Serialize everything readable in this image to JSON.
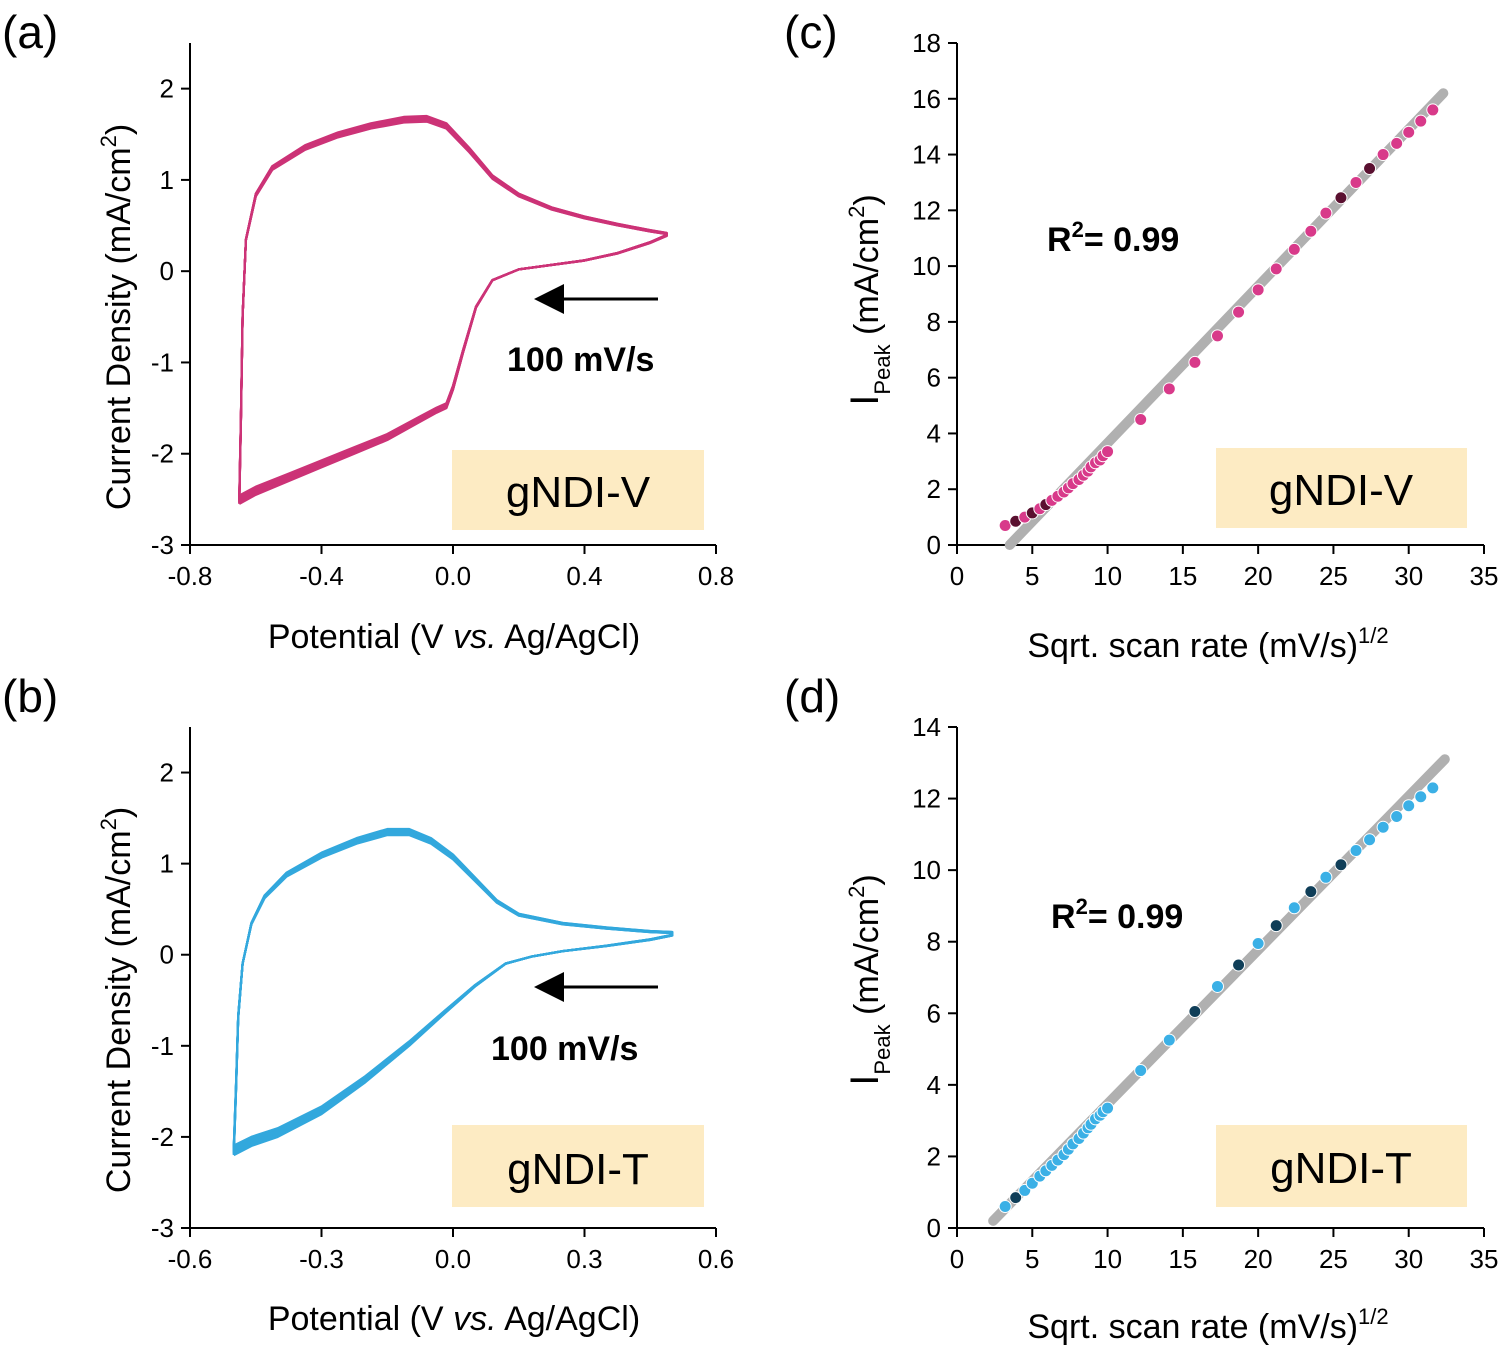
{
  "chart_data": [
    {
      "panel": "(a)",
      "type": "line",
      "xlabel": {
        "pre": "Potential (V ",
        "italic": "vs.",
        "post": " Ag/AgCl)"
      },
      "ylabel": {
        "main": "Current Density (mA/cm",
        "sup": "2",
        "end": ")"
      },
      "xlim": [
        -0.8,
        0.8
      ],
      "ylim": [
        -3,
        2.5
      ],
      "xticks": [
        "-0.8",
        "-0.4",
        "0.0",
        "0.4",
        "0.8"
      ],
      "yticks": [
        "-3",
        "-2",
        "-1",
        "0",
        "1",
        "2"
      ],
      "series_color": "#cc3377",
      "scan_label": "100 mV/s",
      "sample_label": "gNDI-V",
      "label_box_color": "#fdebc3",
      "upper_branch": [
        [
          -0.65,
          -2.55
        ],
        [
          -0.645,
          -1.6
        ],
        [
          -0.64,
          -0.5
        ],
        [
          -0.63,
          0.35
        ],
        [
          -0.6,
          0.85
        ],
        [
          -0.55,
          1.15
        ],
        [
          -0.45,
          1.38
        ],
        [
          -0.35,
          1.52
        ],
        [
          -0.25,
          1.62
        ],
        [
          -0.15,
          1.69
        ],
        [
          -0.08,
          1.7
        ],
        [
          -0.02,
          1.62
        ],
        [
          0.05,
          1.35
        ],
        [
          0.12,
          1.05
        ],
        [
          0.2,
          0.85
        ],
        [
          0.3,
          0.7
        ],
        [
          0.4,
          0.6
        ],
        [
          0.5,
          0.52
        ],
        [
          0.6,
          0.45
        ],
        [
          0.65,
          0.42
        ]
      ],
      "lower_branch": [
        [
          0.65,
          0.4
        ],
        [
          0.6,
          0.32
        ],
        [
          0.5,
          0.2
        ],
        [
          0.4,
          0.12
        ],
        [
          0.3,
          0.07
        ],
        [
          0.2,
          0.02
        ],
        [
          0.12,
          -0.1
        ],
        [
          0.07,
          -0.4
        ],
        [
          0.03,
          -0.9
        ],
        [
          0.0,
          -1.3
        ],
        [
          -0.02,
          -1.5
        ],
        [
          -0.05,
          -1.55
        ],
        [
          -0.1,
          -1.65
        ],
        [
          -0.2,
          -1.85
        ],
        [
          -0.3,
          -2.0
        ],
        [
          -0.4,
          -2.15
        ],
        [
          -0.5,
          -2.3
        ],
        [
          -0.6,
          -2.45
        ],
        [
          -0.65,
          -2.55
        ]
      ],
      "cycle_offset_max": 0.06
    },
    {
      "panel": "(b)",
      "type": "line",
      "xlabel": {
        "pre": "Potential (V ",
        "italic": "vs.",
        "post": " Ag/AgCl)"
      },
      "ylabel": {
        "main": "Current Density (mA/cm",
        "sup": "2",
        "end": ")"
      },
      "xlim": [
        -0.6,
        0.6
      ],
      "ylim": [
        -3,
        2.5
      ],
      "xticks": [
        "-0.6",
        "-0.3",
        "0.0",
        "0.3",
        "0.6"
      ],
      "yticks": [
        "-3",
        "-2",
        "-1",
        "0",
        "1",
        "2"
      ],
      "series_color": "#33a8dd",
      "scan_label": "100 mV/s",
      "sample_label": "gNDI-T",
      "label_box_color": "#fdebc3",
      "upper_branch": [
        [
          -0.5,
          -2.2
        ],
        [
          -0.495,
          -1.5
        ],
        [
          -0.49,
          -0.7
        ],
        [
          -0.48,
          -0.1
        ],
        [
          -0.46,
          0.35
        ],
        [
          -0.43,
          0.65
        ],
        [
          -0.38,
          0.9
        ],
        [
          -0.3,
          1.12
        ],
        [
          -0.22,
          1.28
        ],
        [
          -0.15,
          1.38
        ],
        [
          -0.1,
          1.38
        ],
        [
          -0.05,
          1.28
        ],
        [
          0.0,
          1.1
        ],
        [
          0.05,
          0.85
        ],
        [
          0.1,
          0.6
        ],
        [
          0.15,
          0.45
        ],
        [
          0.25,
          0.35
        ],
        [
          0.35,
          0.3
        ],
        [
          0.45,
          0.26
        ],
        [
          0.5,
          0.25
        ]
      ],
      "lower_branch": [
        [
          0.5,
          0.22
        ],
        [
          0.45,
          0.17
        ],
        [
          0.35,
          0.1
        ],
        [
          0.25,
          0.04
        ],
        [
          0.18,
          -0.02
        ],
        [
          0.12,
          -0.1
        ],
        [
          0.05,
          -0.35
        ],
        [
          -0.02,
          -0.65
        ],
        [
          -0.1,
          -1.0
        ],
        [
          -0.2,
          -1.4
        ],
        [
          -0.3,
          -1.75
        ],
        [
          -0.4,
          -2.0
        ],
        [
          -0.46,
          -2.1
        ],
        [
          -0.5,
          -2.2
        ]
      ],
      "cycle_offset_max": 0.08
    },
    {
      "panel": "(c)",
      "type": "scatter",
      "xlabel": {
        "main": "Sqrt. scan rate (mV/s)",
        "sup": "1/2"
      },
      "ylabel": {
        "main": "I",
        "sub": "Peak",
        "post": " (mA/cm",
        "sup": "2",
        "end": ")"
      },
      "xlim": [
        0,
        35
      ],
      "ylim": [
        0,
        18
      ],
      "xticks": [
        "0",
        "5",
        "10",
        "15",
        "20",
        "25",
        "30",
        "35"
      ],
      "yticks": [
        "0",
        "2",
        "4",
        "6",
        "8",
        "10",
        "12",
        "14",
        "16",
        "18"
      ],
      "marker_color": "#d83a8a",
      "marker_dark_color": "#5a1030",
      "fit_color": "#b0b0b0",
      "fit_line": [
        [
          3.5,
          0
        ],
        [
          32.3,
          16.2
        ]
      ],
      "annotation": {
        "prefix": "R",
        "sup": "2",
        "suffix": "= 0.99"
      },
      "sample_label": "gNDI-V",
      "label_box_color": "#fdebc3",
      "x": [
        3.2,
        3.9,
        4.5,
        5.0,
        5.5,
        5.9,
        6.3,
        6.7,
        7.1,
        7.4,
        7.7,
        8.1,
        8.4,
        8.7,
        8.9,
        9.2,
        9.5,
        9.7,
        10.0,
        12.2,
        14.1,
        15.8,
        17.3,
        18.7,
        20.0,
        21.2,
        22.4,
        23.5,
        24.5,
        25.5,
        26.5,
        27.4,
        28.3,
        29.2,
        30.0,
        30.8,
        31.6
      ],
      "y": [
        0.7,
        0.85,
        1.0,
        1.15,
        1.3,
        1.45,
        1.6,
        1.75,
        1.9,
        2.05,
        2.2,
        2.35,
        2.5,
        2.65,
        2.8,
        2.95,
        3.05,
        3.2,
        3.35,
        4.5,
        5.6,
        6.55,
        7.5,
        8.35,
        9.15,
        9.9,
        10.6,
        11.25,
        11.9,
        12.45,
        13.0,
        13.5,
        14.0,
        14.4,
        14.8,
        15.2,
        15.6
      ]
    },
    {
      "panel": "(d)",
      "type": "scatter",
      "xlabel": {
        "main": "Sqrt. scan rate (mV/s)",
        "sup": "1/2"
      },
      "ylabel": {
        "main": "I",
        "sub": "Peak",
        "post": " (mA/cm",
        "sup": "2",
        "end": ")"
      },
      "xlim": [
        0,
        35
      ],
      "ylim": [
        0,
        14
      ],
      "xticks": [
        "0",
        "5",
        "10",
        "15",
        "20",
        "25",
        "30",
        "35"
      ],
      "yticks": [
        "0",
        "2",
        "4",
        "6",
        "8",
        "10",
        "12",
        "14"
      ],
      "marker_color": "#3bb0e6",
      "marker_dark_color": "#0f3e58",
      "fit_color": "#b0b0b0",
      "fit_line": [
        [
          2.4,
          0.2
        ],
        [
          32.4,
          13.1
        ]
      ],
      "annotation": {
        "prefix": "R",
        "sup": "2",
        "suffix": "= 0.99"
      },
      "sample_label": "gNDI-T",
      "label_box_color": "#fdebc3",
      "x": [
        3.2,
        3.9,
        4.5,
        5.0,
        5.5,
        5.9,
        6.3,
        6.7,
        7.1,
        7.4,
        7.7,
        8.1,
        8.4,
        8.7,
        8.9,
        9.2,
        9.5,
        9.7,
        10.0,
        12.2,
        14.1,
        15.8,
        17.3,
        18.7,
        20.0,
        21.2,
        22.4,
        23.5,
        24.5,
        25.5,
        26.5,
        27.4,
        28.3,
        29.2,
        30.0,
        30.8,
        31.6
      ],
      "y": [
        0.6,
        0.85,
        1.05,
        1.25,
        1.45,
        1.6,
        1.75,
        1.9,
        2.05,
        2.2,
        2.35,
        2.5,
        2.65,
        2.8,
        2.9,
        3.05,
        3.15,
        3.25,
        3.35,
        4.4,
        5.25,
        6.05,
        6.75,
        7.35,
        7.95,
        8.45,
        8.95,
        9.4,
        9.8,
        10.15,
        10.55,
        10.85,
        11.2,
        11.5,
        11.8,
        12.05,
        12.3
      ]
    }
  ]
}
